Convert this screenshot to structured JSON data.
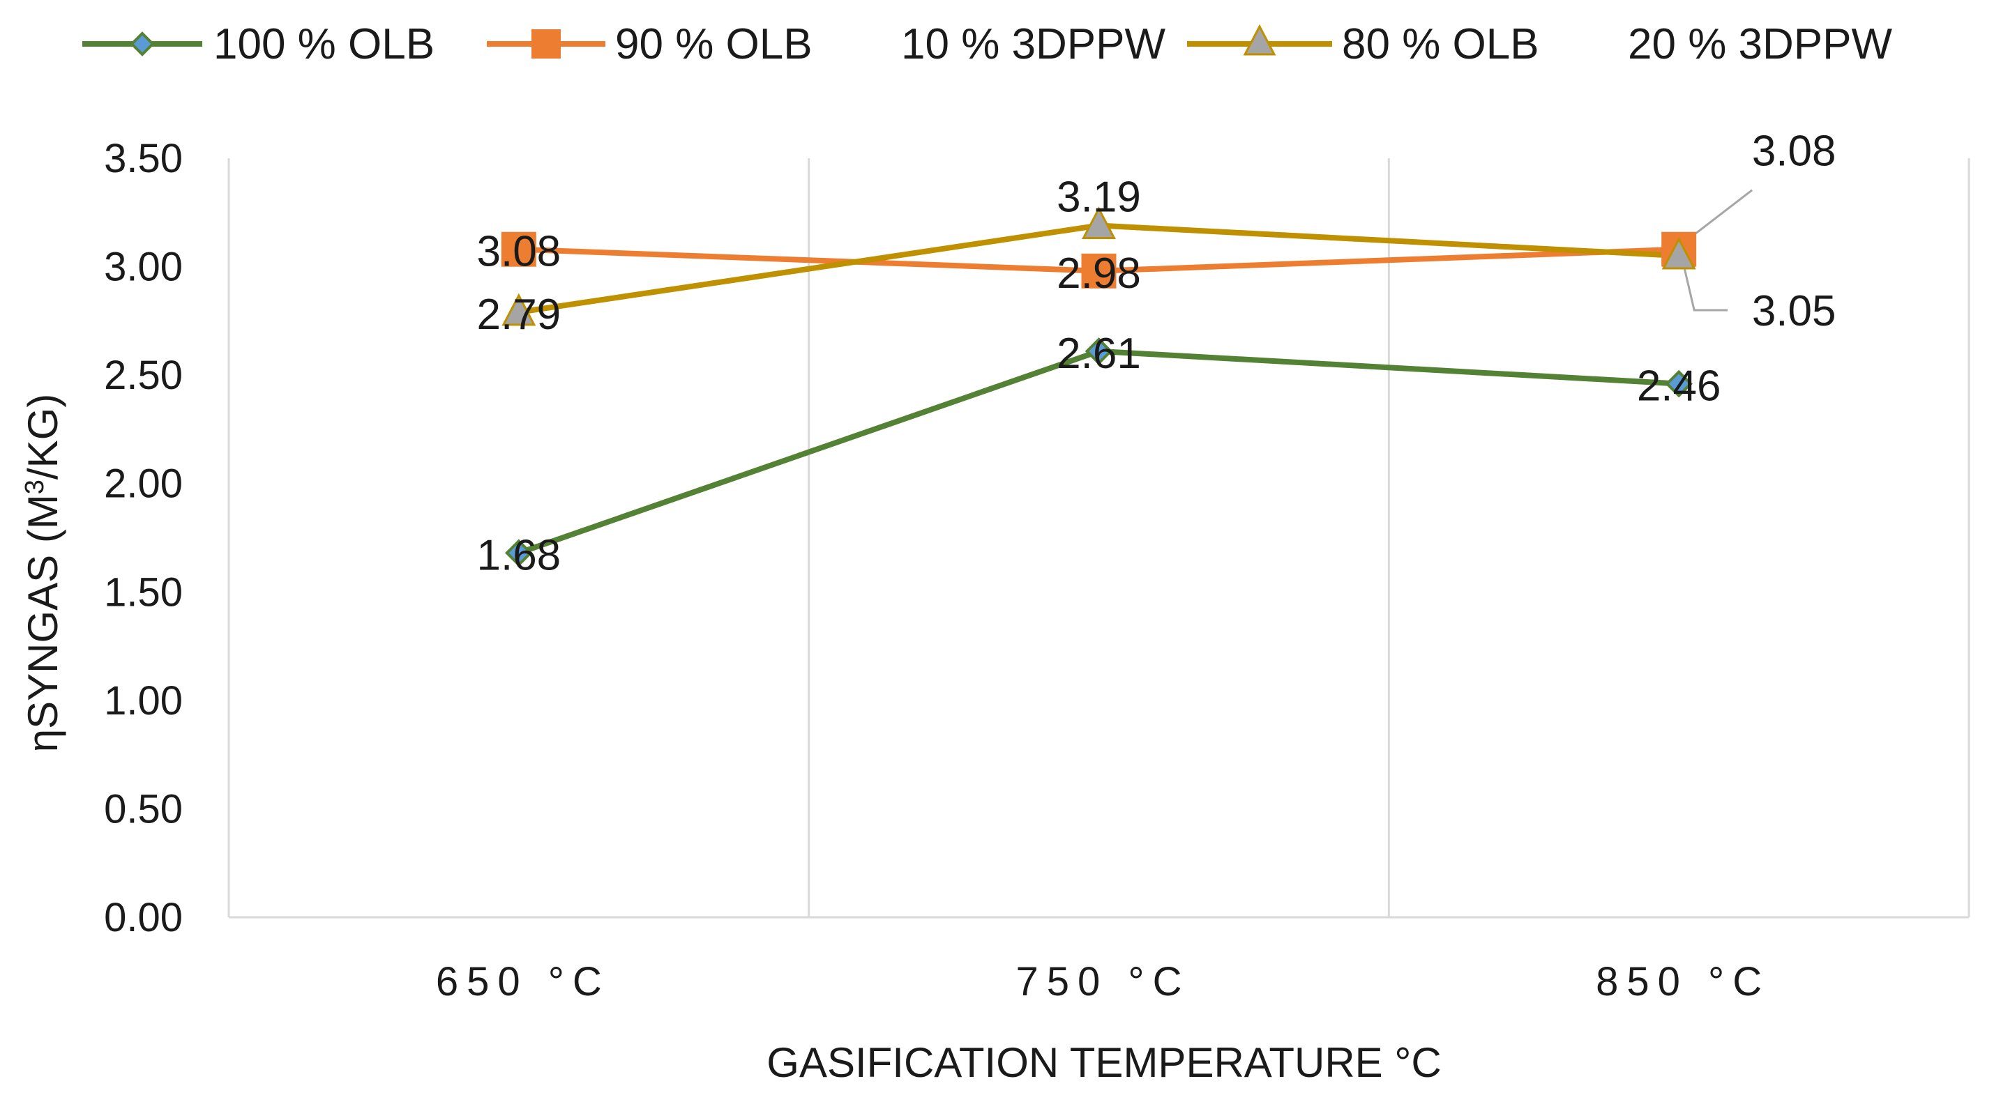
{
  "chart_data": {
    "type": "line",
    "categories": [
      "650 °C",
      "750 °C",
      "850 °C"
    ],
    "series": [
      {
        "name": "100 % OLB",
        "values": [
          1.68,
          2.61,
          2.46
        ],
        "color": "#548235",
        "marker": "diamond",
        "marker_color": "#5b9bd5"
      },
      {
        "name": "90 % OLB   10 % 3DPPW",
        "legend_parts": [
          "90 % OLB",
          "10 % 3DPPW"
        ],
        "values": [
          3.08,
          2.98,
          3.08
        ],
        "color": "#ed7d31",
        "marker": "square",
        "marker_color": "#ed7d31"
      },
      {
        "name": "80 % OLB   20 % 3DPPW",
        "legend_parts": [
          "80 % OLB",
          "20 % 3DPPW"
        ],
        "values": [
          2.79,
          3.19,
          3.05
        ],
        "color": "#bf9000",
        "marker": "triangle",
        "marker_color": "#a5a5a5"
      }
    ],
    "data_labels": [
      [
        "1.68",
        "2.61",
        "2.46"
      ],
      [
        "3.08",
        "2.98",
        "3.08"
      ],
      [
        "2.79",
        "3.19",
        "3.05"
      ]
    ],
    "y_ticks": [
      "0.00",
      "0.50",
      "1.00",
      "1.50",
      "2.00",
      "2.50",
      "3.00",
      "3.50"
    ],
    "ylim": [
      0,
      3.5
    ],
    "xlabel": "GASIFICATION TEMPERATURE °C",
    "ylabel_main": "ηSYNGAS (M",
    "ylabel_sup": "3",
    "ylabel_tail": "/KG)",
    "title": "",
    "grid": "vertical",
    "legend_position": "top",
    "gridline_color": "#d9d9d9",
    "leader_line_color": "#a6a6a6"
  }
}
